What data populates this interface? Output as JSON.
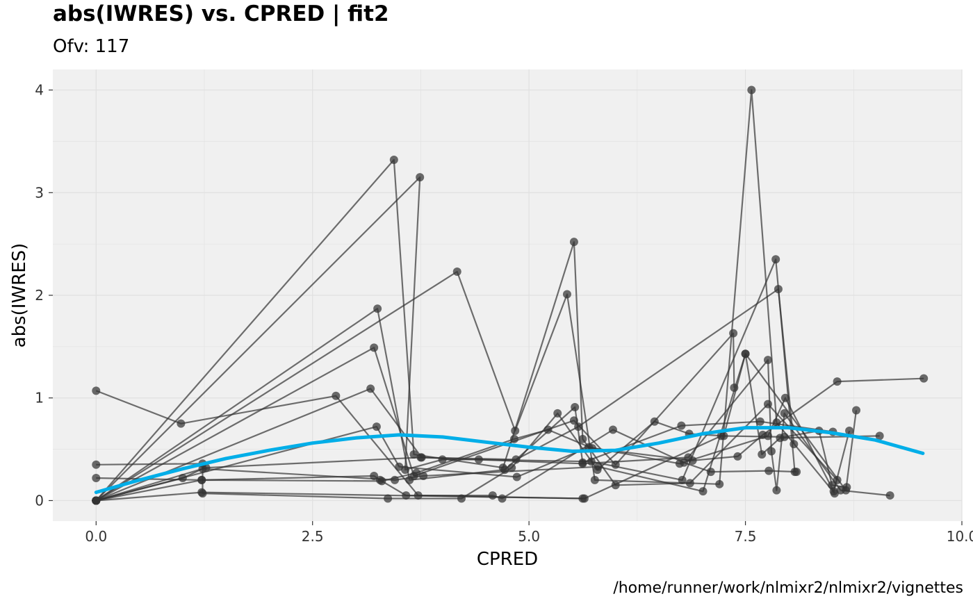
{
  "title": "abs(IWRES) vs. CPRED | fit2",
  "subtitle": "Ofv: 117",
  "caption": "/home/runner/work/nlmixr2/nlmixr2/vignettes",
  "colors": {
    "panel": "#f0f0f0",
    "grid": "#e0e0e0",
    "points": "#333333",
    "smooth": "#00aee8"
  },
  "chart_data": {
    "type": "scatter",
    "xlabel": "CPRED",
    "ylabel": "abs(IWRES)",
    "xlim": [
      -0.5,
      10.0
    ],
    "ylim": [
      -0.2,
      4.2
    ],
    "xticks": [
      0,
      2.5,
      5,
      7.5,
      10
    ],
    "xtick_labels": [
      "0.0",
      "2.5",
      "5.0",
      "7.5",
      "10.0"
    ],
    "yticks": [
      0,
      1,
      2,
      3,
      4
    ],
    "ytick_labels": [
      "0",
      "1",
      "2",
      "3",
      "4"
    ],
    "grid": true,
    "legend": "none",
    "series": [
      {
        "points": [
          [
            0,
            0
          ],
          [
            3.44,
            3.32
          ],
          [
            3.67,
            0.45
          ],
          [
            4.7,
            0.32
          ],
          [
            5.52,
            2.52
          ],
          [
            5.62,
            0.6
          ],
          [
            6.0,
            0.15
          ],
          [
            6.86,
            0.17
          ],
          [
            7.76,
            0.94
          ],
          [
            8.56,
            0.2
          ]
        ]
      },
      {
        "points": [
          [
            0,
            0
          ],
          [
            3.74,
            3.15
          ],
          [
            3.57,
            0.3
          ],
          [
            4.0,
            0.4
          ],
          [
            4.42,
            0.4
          ],
          [
            5.72,
            0.38
          ],
          [
            6.77,
            0.2
          ],
          [
            7.85,
            2.35
          ],
          [
            8.07,
            0.28
          ]
        ]
      },
      {
        "points": [
          [
            0,
            0
          ],
          [
            4.17,
            2.23
          ],
          [
            4.84,
            0.68
          ],
          [
            5.44,
            2.01
          ],
          [
            5.76,
            0.2
          ],
          [
            7.2,
            0.16
          ],
          [
            7.57,
            4.0
          ],
          [
            7.86,
            0.76
          ],
          [
            8.53,
            0.07
          ]
        ]
      },
      {
        "points": [
          [
            0,
            1.07
          ],
          [
            0.98,
            0.75
          ],
          [
            2.77,
            1.02
          ],
          [
            3.72,
            0.05
          ],
          [
            5.62,
            0.02
          ]
        ]
      },
      {
        "points": [
          [
            0,
            0
          ],
          [
            3.25,
            1.87
          ],
          [
            3.62,
            0.2
          ],
          [
            4.72,
            0.3
          ],
          [
            5.53,
            0.91
          ],
          [
            5.62,
            0.37
          ],
          [
            6.76,
            0.73
          ],
          [
            7.67,
            0.77
          ],
          [
            8.51,
            0.67
          ]
        ]
      },
      {
        "points": [
          [
            0,
            0
          ],
          [
            3.21,
            1.49
          ],
          [
            3.67,
            0.24
          ],
          [
            5.52,
            0.78
          ],
          [
            6.0,
            0.35
          ],
          [
            7.36,
            1.63
          ],
          [
            7.37,
            1.1
          ]
        ]
      },
      {
        "points": [
          [
            0,
            0
          ],
          [
            3.17,
            1.09
          ],
          [
            3.76,
            0.42
          ],
          [
            4.85,
            0.4
          ],
          [
            5.57,
            0.72
          ],
          [
            7.88,
            2.06
          ],
          [
            8.06,
            0.55
          ]
        ]
      },
      {
        "points": [
          [
            0,
            0.35
          ],
          [
            1.23,
            0.36
          ],
          [
            1.23,
            0.07
          ],
          [
            3.37,
            0.02
          ],
          [
            4.22,
            0.02
          ],
          [
            4.8,
            0.32
          ],
          [
            5.33,
            0.85
          ],
          [
            5.79,
            0.3
          ],
          [
            6.45,
            0.77
          ],
          [
            6.85,
            0.65
          ],
          [
            7.25,
            0.63
          ],
          [
            7.5,
            1.43
          ],
          [
            8.66,
            0.1
          ],
          [
            8.78,
            0.88
          ]
        ]
      },
      {
        "points": [
          [
            0,
            0.22
          ],
          [
            1.22,
            0.2
          ],
          [
            3.21,
            0.24
          ],
          [
            3.28,
            0.2
          ],
          [
            3.58,
            0.05
          ],
          [
            4.58,
            0.05
          ],
          [
            4.69,
            0.02
          ],
          [
            5.97,
            0.69
          ],
          [
            6.79,
            0.37
          ],
          [
            7.1,
            0.28
          ],
          [
            7.77,
            0.29
          ],
          [
            8.09,
            0.28
          ]
        ]
      },
      {
        "points": [
          [
            0,
            0
          ],
          [
            1.22,
            0.2
          ],
          [
            3.3,
            0.19
          ],
          [
            3.7,
            0.27
          ],
          [
            4.83,
            0.6
          ],
          [
            5.22,
            0.69
          ],
          [
            5.73,
            0.51
          ],
          [
            6.89,
            0.39
          ],
          [
            7.41,
            0.43
          ],
          [
            7.7,
            0.64
          ],
          [
            8.56,
            1.16
          ],
          [
            9.56,
            1.19
          ]
        ]
      },
      {
        "points": [
          [
            0,
            0
          ],
          [
            1.27,
            0.32
          ],
          [
            3.75,
            0.42
          ],
          [
            5.62,
            0.36
          ],
          [
            6.84,
            0.42
          ],
          [
            7.76,
            1.37
          ],
          [
            7.8,
            0.48
          ],
          [
            7.86,
            0.1
          ],
          [
            7.95,
            0.85
          ],
          [
            8.6,
            0.1
          ],
          [
            9.17,
            0.05
          ]
        ]
      },
      {
        "points": [
          [
            0,
            0
          ],
          [
            3.24,
            0.72
          ],
          [
            3.5,
            0.33
          ],
          [
            4.86,
            0.23
          ],
          [
            5.69,
            0.52
          ],
          [
            6.74,
            0.36
          ],
          [
            7.76,
            0.63
          ],
          [
            7.96,
            1.0
          ],
          [
            8.52,
            0.09
          ],
          [
            8.7,
            0.68
          ]
        ]
      },
      {
        "points": [
          [
            0,
            0
          ],
          [
            1.0,
            0.22
          ],
          [
            1.23,
            0.31
          ],
          [
            3.45,
            0.2
          ],
          [
            3.78,
            0.24
          ],
          [
            5.8,
            0.33
          ],
          [
            7.01,
            0.09
          ],
          [
            7.5,
            1.43
          ],
          [
            7.69,
            0.45
          ],
          [
            7.9,
            0.61
          ],
          [
            9.05,
            0.63
          ]
        ]
      },
      {
        "points": [
          [
            0,
            0
          ],
          [
            1.22,
            0.08
          ],
          [
            5.64,
            0.02
          ],
          [
            7.22,
            0.63
          ],
          [
            7.95,
            0.62
          ],
          [
            8.35,
            0.68
          ],
          [
            8.5,
            0.15
          ],
          [
            8.67,
            0.13
          ]
        ]
      }
    ],
    "smooth": [
      [
        0,
        0.08
      ],
      [
        0.5,
        0.2
      ],
      [
        1.0,
        0.31
      ],
      [
        1.5,
        0.41
      ],
      [
        2.0,
        0.49
      ],
      [
        2.5,
        0.56
      ],
      [
        3.0,
        0.61
      ],
      [
        3.5,
        0.64
      ],
      [
        4.0,
        0.62
      ],
      [
        4.5,
        0.57
      ],
      [
        5.0,
        0.52
      ],
      [
        5.5,
        0.48
      ],
      [
        6.0,
        0.49
      ],
      [
        6.5,
        0.56
      ],
      [
        7.0,
        0.65
      ],
      [
        7.5,
        0.71
      ],
      [
        8.0,
        0.71
      ],
      [
        8.5,
        0.66
      ],
      [
        9.0,
        0.59
      ],
      [
        9.55,
        0.46
      ]
    ]
  }
}
